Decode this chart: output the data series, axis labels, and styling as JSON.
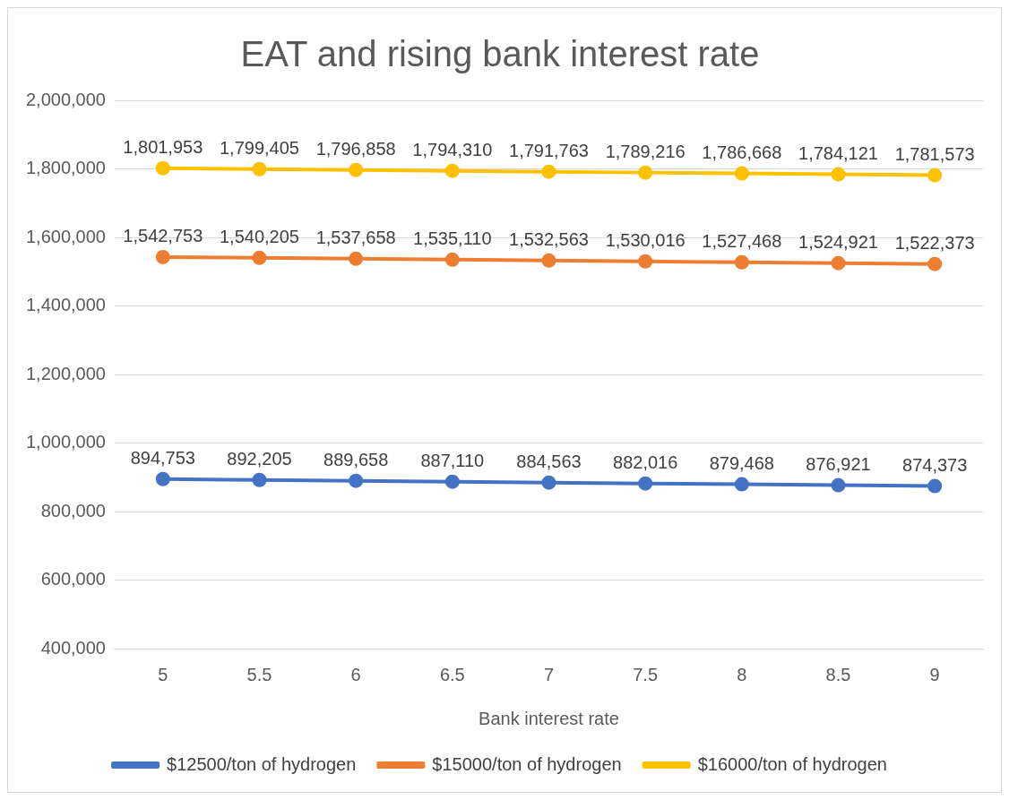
{
  "chart_data": {
    "type": "line",
    "title": "EAT and rising bank interest rate",
    "xlabel": "Bank interest rate",
    "categories": [
      "5",
      "5.5",
      "6",
      "6.5",
      "7",
      "7.5",
      "8",
      "8.5",
      "9"
    ],
    "series": [
      {
        "name": "$12500/ton of hydrogen",
        "color": "#4472c4",
        "values": [
          894753,
          892205,
          889658,
          887110,
          884563,
          882016,
          879468,
          876921,
          874373
        ],
        "value_labels": [
          "894,753",
          "892,205",
          "889,658",
          "887,110",
          "884,563",
          "882,016",
          "879,468",
          "876,921",
          "874,373"
        ]
      },
      {
        "name": "$15000/ton of hydrogen",
        "color": "#ed7d31",
        "values": [
          1542753,
          1540205,
          1537658,
          1535110,
          1532563,
          1530016,
          1527468,
          1524921,
          1522373
        ],
        "value_labels": [
          "1,542,753",
          "1,540,205",
          "1,537,658",
          "1,535,110",
          "1,532,563",
          "1,530,016",
          "1,527,468",
          "1,524,921",
          "1,522,373"
        ]
      },
      {
        "name": "$16000/ton of hydrogen",
        "color": "#ffc000",
        "values": [
          1801953,
          1799405,
          1796858,
          1794310,
          1791763,
          1789216,
          1786668,
          1784121,
          1781573
        ],
        "value_labels": [
          "1,801,953",
          "1,799,405",
          "1,796,858",
          "1,794,310",
          "1,791,763",
          "1,789,216",
          "1,786,668",
          "1,784,121",
          "1,781,573"
        ]
      }
    ],
    "ylim": [
      400000,
      2000000
    ],
    "yticks": [
      {
        "value": 400000,
        "label": "400,000"
      },
      {
        "value": 600000,
        "label": "600,000"
      },
      {
        "value": 800000,
        "label": "800,000"
      },
      {
        "value": 1000000,
        "label": "1,000,000"
      },
      {
        "value": 1200000,
        "label": "1,200,000"
      },
      {
        "value": 1400000,
        "label": "1,400,000"
      },
      {
        "value": 1600000,
        "label": "1,600,000"
      },
      {
        "value": 1800000,
        "label": "1,800,000"
      },
      {
        "value": 2000000,
        "label": "2,000,000"
      }
    ],
    "grid": "y",
    "legend": "bottom",
    "marker": "circle",
    "line_style": "solid"
  }
}
